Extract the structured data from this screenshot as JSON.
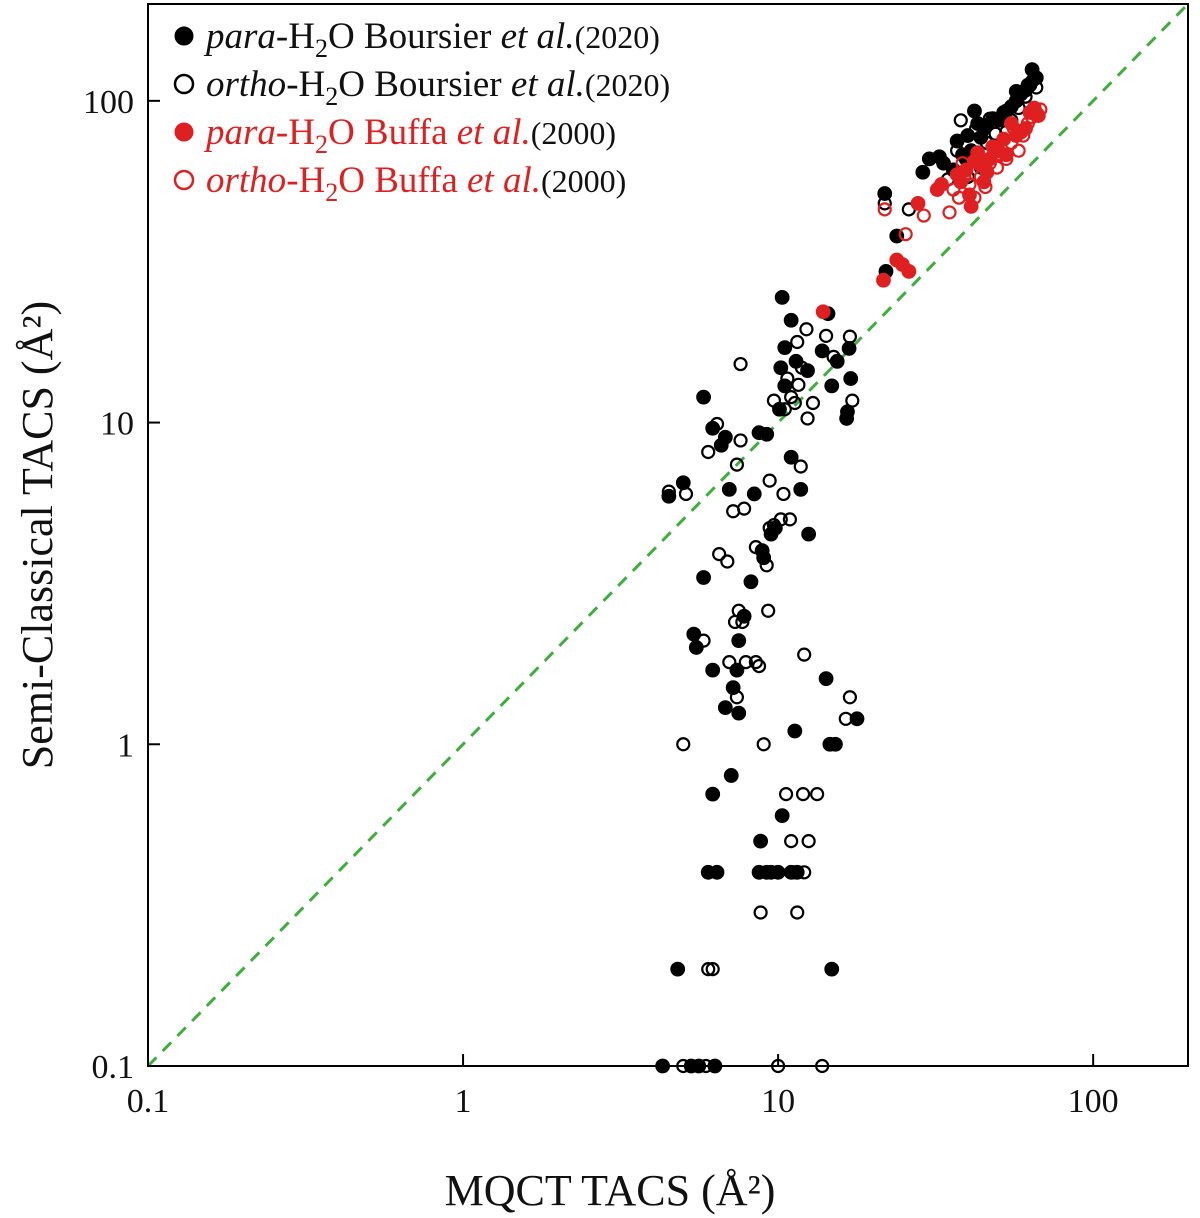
{
  "chart_data": {
    "type": "scatter",
    "title": "",
    "xlabel": "MQCT TACS (Å²)",
    "ylabel": "Semi-Classical TACS (Å²)",
    "xscale": "log",
    "yscale": "log",
    "xlim": [
      0.1,
      200
    ],
    "ylim": [
      0.1,
      200
    ],
    "xticks": [
      "0.1",
      "1",
      "10",
      "100"
    ],
    "yticks": [
      "0.1",
      "1",
      "10",
      "100"
    ],
    "reference_line": {
      "label": "y = x",
      "style": "dashed",
      "color": "#3fae3f"
    },
    "legend_placement": "top-left",
    "legend": [
      {
        "species": "para",
        "pre": "-H",
        "sub": "2",
        "post": "O  Boursier ",
        "etal": "et al.",
        "year": "(2020)",
        "color": "#000000",
        "filled": true
      },
      {
        "species": "ortho",
        "pre": "-H",
        "sub": "2",
        "post": "O Boursier ",
        "etal": "et al.",
        "year": "(2020)",
        "color": "#000000",
        "filled": false
      },
      {
        "species": "para",
        "pre": "-H",
        "sub": "2",
        "post": "O  Buffa ",
        "etal": "et al.",
        "year": "(2000)",
        "color": "#e02020",
        "filled": true
      },
      {
        "species": "ortho",
        "pre": "-H",
        "sub": "2",
        "post": "O Buffa ",
        "etal": "et al.",
        "year": "(2000)",
        "color": "#e02020",
        "filled": false
      }
    ],
    "series": [
      {
        "name": "para-H2O Boursier et al. (2020)",
        "color": "#000000",
        "filled": true,
        "points": [
          [
            4.3,
            0.1
          ],
          [
            5.3,
            0.1
          ],
          [
            5.6,
            0.1
          ],
          [
            6.3,
            0.1
          ],
          [
            4.8,
            0.2
          ],
          [
            14.8,
            0.2
          ],
          [
            6.0,
            0.4
          ],
          [
            6.4,
            0.4
          ],
          [
            8.7,
            0.4
          ],
          [
            9.2,
            0.4
          ],
          [
            9.5,
            0.4
          ],
          [
            10.0,
            0.4
          ],
          [
            11.0,
            0.4
          ],
          [
            11.5,
            0.4
          ],
          [
            8.8,
            0.5
          ],
          [
            10.3,
            0.6
          ],
          [
            6.2,
            0.7
          ],
          [
            7.1,
            0.8
          ],
          [
            11.3,
            1.1
          ],
          [
            14.6,
            1.0
          ],
          [
            15.2,
            1.0
          ],
          [
            14.2,
            1.6
          ],
          [
            17.8,
            1.2
          ],
          [
            6.8,
            1.3
          ],
          [
            7.5,
            1.25
          ],
          [
            7.2,
            1.5
          ],
          [
            7.4,
            1.7
          ],
          [
            6.2,
            1.7
          ],
          [
            5.5,
            2.0
          ],
          [
            5.4,
            2.2
          ],
          [
            7.5,
            2.1
          ],
          [
            7.8,
            2.5
          ],
          [
            8.2,
            3.2
          ],
          [
            5.8,
            3.3
          ],
          [
            9.0,
            3.8
          ],
          [
            9.5,
            4.5
          ],
          [
            9.8,
            4.7
          ],
          [
            8.9,
            4.0
          ],
          [
            12.5,
            4.5
          ],
          [
            8.4,
            6.0
          ],
          [
            7.0,
            6.2
          ],
          [
            11.8,
            6.2
          ],
          [
            11.0,
            7.8
          ],
          [
            4.5,
            5.9
          ],
          [
            5.0,
            6.5
          ],
          [
            6.2,
            9.6
          ],
          [
            6.8,
            9.0
          ],
          [
            6.6,
            8.5
          ],
          [
            5.8,
            12.0
          ],
          [
            8.7,
            9.3
          ],
          [
            9.2,
            9.2
          ],
          [
            10.1,
            11.0
          ],
          [
            10.5,
            13.0
          ],
          [
            10.2,
            14.8
          ],
          [
            11.4,
            15.5
          ],
          [
            11.0,
            20.8
          ],
          [
            10.3,
            24.5
          ],
          [
            10.5,
            17.1
          ],
          [
            12.4,
            14.5
          ],
          [
            13.8,
            16.7
          ],
          [
            14.8,
            13.0
          ],
          [
            15.4,
            15.5
          ],
          [
            14.4,
            21.8
          ],
          [
            16.5,
            10.3
          ],
          [
            16.6,
            10.8
          ],
          [
            17.0,
            13.7
          ],
          [
            16.8,
            17.0
          ],
          [
            21.8,
            51.5
          ],
          [
            22.0,
            29.5
          ],
          [
            23.8,
            38.0
          ],
          [
            28.8,
            60.0
          ],
          [
            30.2,
            66.0
          ],
          [
            32.5,
            67.0
          ],
          [
            33.5,
            64.0
          ],
          [
            36.0,
            61.0
          ],
          [
            37.0,
            75.0
          ],
          [
            38.5,
            68.0
          ],
          [
            40.0,
            78.0
          ],
          [
            41.0,
            70.0
          ],
          [
            42.0,
            93.0
          ],
          [
            43.0,
            85.0
          ],
          [
            44.0,
            77.0
          ],
          [
            46.0,
            84.0
          ],
          [
            48.0,
            88.0
          ],
          [
            50.0,
            87.0
          ],
          [
            52.0,
            92.0
          ],
          [
            55.0,
            96.0
          ],
          [
            57.0,
            100.0
          ],
          [
            59.0,
            105.0
          ],
          [
            61.0,
            108.0
          ],
          [
            63.0,
            112.0
          ],
          [
            64.0,
            125.0
          ],
          [
            66.0,
            118.0
          ],
          [
            57.0,
            107.0
          ],
          [
            53.0,
            93.0
          ],
          [
            45.0,
            82.0
          ],
          [
            39.5,
            66.0
          ]
        ]
      },
      {
        "name": "ortho-H2O Boursier et al. (2020)",
        "color": "#000000",
        "filled": false,
        "points": [
          [
            5.0,
            0.1
          ],
          [
            5.9,
            0.1
          ],
          [
            10.0,
            0.1
          ],
          [
            13.8,
            0.1
          ],
          [
            6.0,
            0.2
          ],
          [
            6.2,
            0.2
          ],
          [
            8.8,
            0.3
          ],
          [
            11.5,
            0.3
          ],
          [
            11.3,
            0.4
          ],
          [
            12.1,
            0.4
          ],
          [
            11.0,
            0.5
          ],
          [
            12.5,
            0.5
          ],
          [
            10.6,
            0.7
          ],
          [
            12.0,
            0.7
          ],
          [
            13.3,
            0.7
          ],
          [
            9.0,
            1.0
          ],
          [
            5.0,
            1.0
          ],
          [
            16.4,
            1.2
          ],
          [
            16.9,
            1.4
          ],
          [
            12.1,
            1.9
          ],
          [
            8.5,
            1.8
          ],
          [
            7.4,
            1.4
          ],
          [
            7.9,
            1.8
          ],
          [
            8.7,
            1.75
          ],
          [
            7.0,
            1.8
          ],
          [
            5.8,
            2.1
          ],
          [
            7.3,
            2.4
          ],
          [
            7.7,
            2.4
          ],
          [
            7.5,
            2.6
          ],
          [
            9.3,
            2.6
          ],
          [
            6.5,
            3.9
          ],
          [
            6.9,
            3.7
          ],
          [
            9.2,
            3.6
          ],
          [
            8.5,
            4.1
          ],
          [
            9.7,
            4.8
          ],
          [
            10.2,
            5.0
          ],
          [
            10.9,
            5.0
          ],
          [
            9.4,
            4.7
          ],
          [
            7.2,
            5.3
          ],
          [
            7.8,
            5.4
          ],
          [
            10.4,
            6.0
          ],
          [
            9.4,
            6.6
          ],
          [
            11.8,
            7.3
          ],
          [
            5.1,
            6.0
          ],
          [
            4.5,
            6.1
          ],
          [
            6.0,
            8.1
          ],
          [
            6.4,
            9.9
          ],
          [
            7.4,
            7.4
          ],
          [
            7.6,
            8.8
          ],
          [
            7.6,
            15.2
          ],
          [
            9.7,
            11.7
          ],
          [
            10.5,
            11.0
          ],
          [
            11.0,
            12.0
          ],
          [
            11.3,
            11.5
          ],
          [
            10.7,
            13.7
          ],
          [
            11.6,
            13.1
          ],
          [
            11.9,
            14.8
          ],
          [
            12.9,
            11.5
          ],
          [
            12.4,
            10.3
          ],
          [
            14.2,
            18.6
          ],
          [
            15.0,
            16.0
          ],
          [
            16.9,
            18.5
          ],
          [
            17.2,
            11.7
          ],
          [
            12.3,
            19.5
          ],
          [
            11.5,
            17.8
          ],
          [
            26.0,
            46.0
          ],
          [
            21.8,
            48.0
          ],
          [
            34.6,
            57.0
          ],
          [
            37.0,
            70.0
          ],
          [
            40.0,
            58.0
          ],
          [
            42.5,
            82.0
          ],
          [
            44.0,
            62.0
          ],
          [
            46.0,
            74.0
          ],
          [
            47.0,
            88.0
          ],
          [
            38.0,
            87.0
          ],
          [
            53.0,
            80.0
          ],
          [
            58.0,
            95.0
          ],
          [
            61.0,
            103.0
          ],
          [
            62.0,
            112.0
          ],
          [
            64.0,
            115.0
          ],
          [
            66.0,
            110.0
          ],
          [
            49.0,
            79.0
          ],
          [
            55.0,
            87.0
          ]
        ]
      },
      {
        "name": "para-H2O Buffa et al. (2000)",
        "color": "#e02020",
        "filled": true,
        "points": [
          [
            13.9,
            22.1
          ],
          [
            21.6,
            27.7
          ],
          [
            23.8,
            32.0
          ],
          [
            24.8,
            31.0
          ],
          [
            26.0,
            29.5
          ],
          [
            27.8,
            48.0
          ],
          [
            32.0,
            53.0
          ],
          [
            33.0,
            55.0
          ],
          [
            37.0,
            59.0
          ],
          [
            38.0,
            56.0
          ],
          [
            39.5,
            61.0
          ],
          [
            40.5,
            51.0
          ],
          [
            41.0,
            47.0
          ],
          [
            42.0,
            65.0
          ],
          [
            43.0,
            69.0
          ],
          [
            44.0,
            63.0
          ],
          [
            45.0,
            56.0
          ],
          [
            47.0,
            66.0
          ],
          [
            48.0,
            72.0
          ],
          [
            50.0,
            70.0
          ],
          [
            52.0,
            76.0
          ],
          [
            55.0,
            85.0
          ],
          [
            57.0,
            78.0
          ],
          [
            59.0,
            80.0
          ],
          [
            61.0,
            82.0
          ],
          [
            63.0,
            92.0
          ],
          [
            65.0,
            95.0
          ],
          [
            67.0,
            90.0
          ],
          [
            53.0,
            68.0
          ],
          [
            46.0,
            60.0
          ]
        ]
      },
      {
        "name": "ortho-H2O Buffa et al. (2000)",
        "color": "#e02020",
        "filled": false,
        "points": [
          [
            21.8,
            46.0
          ],
          [
            25.4,
            38.5
          ],
          [
            29.0,
            44.0
          ],
          [
            35.0,
            45.0
          ],
          [
            36.0,
            53.0
          ],
          [
            37.5,
            50.0
          ],
          [
            38.5,
            64.0
          ],
          [
            39.0,
            58.0
          ],
          [
            40.5,
            55.0
          ],
          [
            42.0,
            50.0
          ],
          [
            44.0,
            58.0
          ],
          [
            45.5,
            54.0
          ],
          [
            47.0,
            64.0
          ],
          [
            49.5,
            62.0
          ],
          [
            51.0,
            68.0
          ],
          [
            53.0,
            66.0
          ],
          [
            55.0,
            74.0
          ],
          [
            58.0,
            70.0
          ],
          [
            60.0,
            78.0
          ],
          [
            62.0,
            85.0
          ],
          [
            64.0,
            89.0
          ],
          [
            66.0,
            92.0
          ],
          [
            68.0,
            94.0
          ],
          [
            56.0,
            82.0
          ]
        ]
      }
    ]
  }
}
